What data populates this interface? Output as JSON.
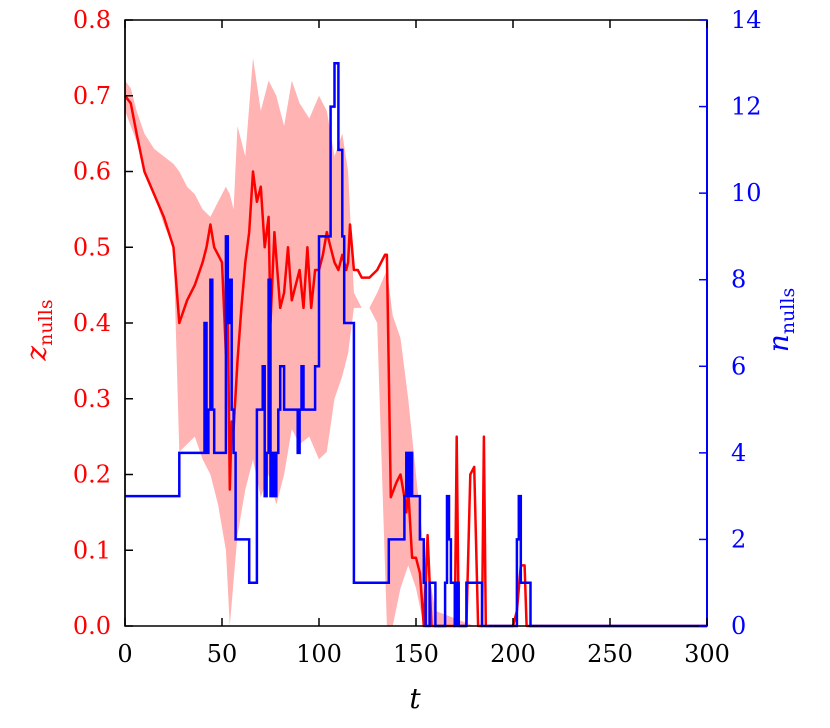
{
  "chart_data": {
    "type": "line",
    "xlabel": "t",
    "ylabel_left": {
      "main": "z",
      "sub": "nulls"
    },
    "ylabel_right": {
      "main": "n",
      "sub": "nulls"
    },
    "xlim": [
      0,
      300
    ],
    "ylim_left": [
      0,
      0.8
    ],
    "ylim_right": [
      0,
      14
    ],
    "xticks": [
      0,
      50,
      100,
      150,
      200,
      250,
      300
    ],
    "yticks_left": [
      "0.0",
      "0.1",
      "0.2",
      "0.3",
      "0.4",
      "0.5",
      "0.6",
      "0.7",
      "0.8"
    ],
    "yticks_right": [
      0,
      2,
      4,
      6,
      8,
      10,
      12,
      14
    ],
    "grid": false,
    "colors": {
      "z": "#ff0000",
      "band": "#ffb3b3",
      "n": "#0000ff",
      "axes": "#000000"
    },
    "series": [
      {
        "axis": "left",
        "role": "band",
        "x": [
          0,
          3,
          6,
          10,
          15,
          20,
          25,
          28,
          32,
          36,
          40,
          44,
          48,
          52,
          54,
          56,
          58,
          62,
          66,
          70,
          74,
          78,
          82,
          86,
          90,
          95,
          100,
          104,
          108,
          112,
          115,
          118,
          122,
          126,
          130,
          135,
          138,
          142,
          146,
          150,
          154,
          158,
          160,
          170,
          180,
          190,
          200,
          210
        ],
        "upper": [
          0.72,
          0.71,
          0.68,
          0.65,
          0.63,
          0.62,
          0.61,
          0.6,
          0.58,
          0.57,
          0.55,
          0.54,
          0.56,
          0.58,
          0.57,
          0.55,
          0.66,
          0.62,
          0.75,
          0.68,
          0.72,
          0.7,
          0.66,
          0.72,
          0.69,
          0.67,
          0.7,
          0.68,
          0.62,
          0.65,
          0.6,
          0.44,
          0.42,
          0.42,
          0.44,
          0.47,
          0.41,
          0.38,
          0.3,
          0.2,
          0.1,
          0.05,
          0.02,
          0.01,
          0.0,
          0.0,
          0.0,
          0.0
        ],
        "lower": [
          0.68,
          0.66,
          0.64,
          0.6,
          0.57,
          0.53,
          0.5,
          0.23,
          0.24,
          0.25,
          0.22,
          0.2,
          0.16,
          0.1,
          0.0,
          0.06,
          0.12,
          0.18,
          0.22,
          0.17,
          0.2,
          0.16,
          0.2,
          0.26,
          0.24,
          0.25,
          0.22,
          0.23,
          0.3,
          0.33,
          0.36,
          0.42,
          0.42,
          0.42,
          0.4,
          0.0,
          0.0,
          0.05,
          0.08,
          0.05,
          0.0,
          0.0,
          0.0,
          0.0,
          0.0,
          0.0,
          0.0,
          0.0
        ]
      },
      {
        "axis": "left",
        "role": "z_nulls",
        "x": [
          0,
          3,
          6,
          10,
          15,
          20,
          25,
          28,
          32,
          36,
          40,
          42,
          44,
          46,
          48,
          50,
          52,
          53,
          54,
          55,
          56,
          58,
          60,
          62,
          64,
          66,
          68,
          70,
          72,
          74,
          75,
          77,
          80,
          82,
          84,
          86,
          88,
          90,
          92,
          94,
          96,
          98,
          100,
          102,
          104,
          106,
          108,
          110,
          112,
          114,
          115,
          116,
          118,
          120,
          122,
          126,
          130,
          134,
          135,
          137,
          140,
          142,
          144,
          145,
          146,
          148,
          150,
          152,
          154,
          156,
          158,
          160,
          162,
          165,
          168,
          170,
          171,
          172,
          174,
          176,
          178,
          180,
          182,
          184,
          185,
          186,
          188,
          190,
          200,
          202,
          204,
          206,
          207,
          208,
          210,
          300
        ],
        "y": [
          0.7,
          0.69,
          0.65,
          0.6,
          0.57,
          0.54,
          0.5,
          0.4,
          0.43,
          0.45,
          0.48,
          0.5,
          0.53,
          0.5,
          0.49,
          0.48,
          0.36,
          0.41,
          0.18,
          0.27,
          0.26,
          0.35,
          0.42,
          0.48,
          0.52,
          0.6,
          0.56,
          0.58,
          0.5,
          0.54,
          0.4,
          0.52,
          0.42,
          0.44,
          0.5,
          0.43,
          0.45,
          0.47,
          0.42,
          0.5,
          0.42,
          0.47,
          0.47,
          0.49,
          0.52,
          0.5,
          0.48,
          0.47,
          0.49,
          0.47,
          0.48,
          0.53,
          0.47,
          0.47,
          0.46,
          0.46,
          0.47,
          0.49,
          0.49,
          0.17,
          0.19,
          0.2,
          0.17,
          0.15,
          0.18,
          0.09,
          0.09,
          0.07,
          0.0,
          0.12,
          0.0,
          0.0,
          0.0,
          0.0,
          0.0,
          0.0,
          0.25,
          0.0,
          0.0,
          0.0,
          0.2,
          0.21,
          0.0,
          0.0,
          0.25,
          0.0,
          0.0,
          0.0,
          0.0,
          0.02,
          0.08,
          0.08,
          0.0,
          0.0,
          0.0,
          0.0
        ]
      },
      {
        "axis": "right",
        "role": "n_nulls",
        "step": true,
        "x": [
          0,
          28,
          41,
          42,
          43,
          44,
          45,
          46,
          47,
          52,
          53,
          54,
          55,
          56,
          57,
          58,
          59,
          60,
          63,
          64,
          67,
          68,
          71,
          72,
          73,
          74,
          75,
          76,
          77,
          78,
          79,
          80,
          82,
          88,
          89,
          90,
          91,
          92,
          94,
          95,
          96,
          98,
          100,
          102,
          104,
          106,
          108,
          110,
          112,
          113,
          114,
          115,
          118,
          135,
          136,
          144,
          145,
          146,
          147,
          148,
          150,
          152,
          154,
          155,
          157,
          158,
          159,
          160,
          165,
          166,
          167,
          168,
          170,
          171,
          172,
          174,
          176,
          178,
          180,
          184,
          186,
          188,
          200,
          202,
          203,
          204,
          205,
          209,
          300
        ],
        "y": [
          3,
          4,
          7,
          4,
          5,
          8,
          5,
          4,
          4,
          9,
          7,
          8,
          5,
          4,
          2,
          2,
          2,
          2,
          2,
          1,
          1,
          5,
          6,
          3,
          4,
          8,
          3,
          4,
          3,
          4,
          5,
          6,
          5,
          5,
          4,
          5,
          6,
          5,
          5,
          5,
          5,
          6,
          9,
          9,
          9,
          12,
          13,
          11,
          9,
          7,
          7,
          7,
          1,
          1,
          2,
          3,
          4,
          3,
          4,
          3,
          3,
          2,
          1,
          0,
          1,
          1,
          1,
          0,
          1,
          3,
          2,
          1,
          0,
          1,
          0,
          0,
          1,
          1,
          1,
          0,
          0,
          0,
          0,
          2,
          3,
          1,
          1,
          0,
          0
        ]
      }
    ]
  }
}
